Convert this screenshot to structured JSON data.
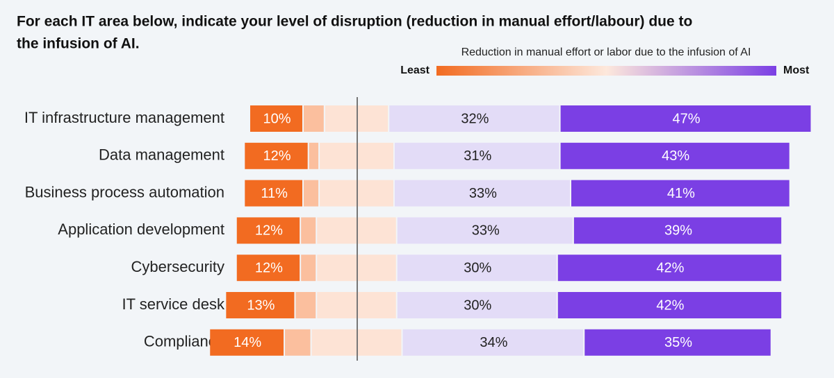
{
  "chart_data": {
    "type": "diverging_bar",
    "title_lines": [
      "For each IT area below, indicate your level of disruption (reduction in manual effort/labour) due to",
      "the infusion of AI."
    ],
    "legend_title": "Reduction in manual effort or labor due to the infusion of AI",
    "legend_low": "Least",
    "legend_high": "Most",
    "categories": [
      "IT infrastructure management",
      "Data management",
      "Business process automation",
      "Application development",
      "Cybersecurity",
      "IT service desk",
      "Compliance"
    ],
    "series": [
      {
        "color": "#f26b21",
        "values": [
          10,
          12,
          11,
          12,
          12,
          13,
          14
        ],
        "value_labels": [
          "10%",
          "12%",
          "11%",
          "12%",
          "12%",
          "13%",
          "14%"
        ]
      },
      {
        "color": "#fbbf9e",
        "values": [
          4,
          2,
          3,
          3,
          3,
          4,
          5
        ]
      },
      {
        "color": "#fde3d5",
        "values": [
          12,
          14,
          14,
          15,
          15,
          15,
          17
        ]
      },
      {
        "color": "#e3dcf7",
        "values": [
          32,
          31,
          33,
          33,
          30,
          30,
          34
        ],
        "value_labels": [
          "32%",
          "31%",
          "33%",
          "33%",
          "30%",
          "30%",
          "34%"
        ]
      },
      {
        "color": "#7b3fe4",
        "values": [
          47,
          43,
          41,
          39,
          42,
          42,
          35
        ],
        "value_labels": [
          "47%",
          "43%",
          "41%",
          "39%",
          "42%",
          "42%",
          "35%"
        ]
      }
    ],
    "neutral_series": 2
  }
}
